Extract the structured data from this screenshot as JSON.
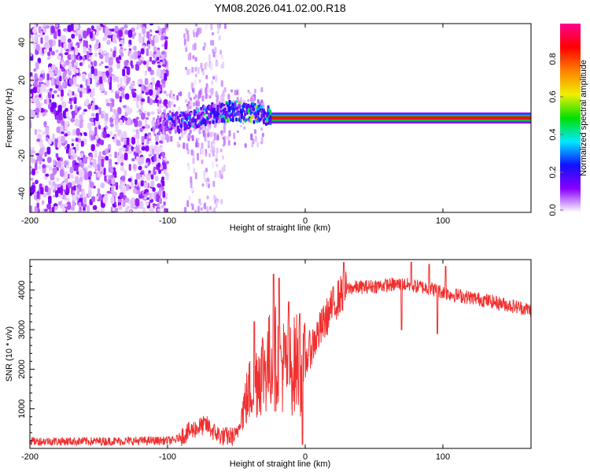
{
  "title": "YM08.2026.041.02.00.R18",
  "chart_data": [
    {
      "type": "heatmap",
      "xlabel": "Height of straight line (km)",
      "ylabel": "Frequency (Hz)",
      "xlim": [
        -200,
        164
      ],
      "ylim": [
        -50,
        50
      ],
      "xticks": [
        -200,
        -100,
        0,
        100
      ],
      "yticks": [
        40,
        20,
        0,
        -20,
        -40
      ],
      "colorbar": {
        "label": "Normalized spectral amplitude",
        "range": [
          0,
          1
        ],
        "ticks": [
          "0.0",
          "0.2",
          "0.4",
          "0.6",
          "0.8"
        ],
        "colormap": [
          "#ffffff",
          "#8a00ff",
          "#1010ff",
          "#00e8ff",
          "#00e000",
          "#f0f000",
          "#ff8000",
          "#ff0000",
          "#ff0090"
        ]
      },
      "noise_region": {
        "x": [
          -200,
          -100
        ],
        "amplitude": [
          0.0,
          0.15
        ]
      },
      "sparse_region": {
        "x": [
          -88,
          -58
        ],
        "amplitude": [
          0.0,
          0.1
        ]
      },
      "ridge": [
        {
          "x": -110,
          "freq": -4,
          "amp": 0.15
        },
        {
          "x": -100,
          "freq": -3,
          "amp": 0.25
        },
        {
          "x": -90,
          "freq": -2,
          "amp": 0.35
        },
        {
          "x": -80,
          "freq": 0,
          "amp": 0.4
        },
        {
          "x": -70,
          "freq": 2,
          "amp": 0.4
        },
        {
          "x": -60,
          "freq": 3,
          "amp": 0.45
        },
        {
          "x": -50,
          "freq": 4,
          "amp": 0.5
        },
        {
          "x": -40,
          "freq": 3,
          "amp": 0.55
        },
        {
          "x": -30,
          "freq": 1,
          "amp": 0.7
        },
        {
          "x": -20,
          "freq": 0,
          "amp": 0.8
        },
        {
          "x": 0,
          "freq": 0,
          "amp": 0.9
        },
        {
          "x": 164,
          "freq": 0,
          "amp": 0.9
        }
      ]
    },
    {
      "type": "line",
      "xlabel": "Height of straight line (km)",
      "ylabel": "SNR (10 * v/v)",
      "xlim": [
        -200,
        164
      ],
      "ylim": [
        0,
        4770
      ],
      "xticks": [
        -200,
        -100,
        0,
        100
      ],
      "yticks": [
        1000,
        2000,
        3000,
        4000
      ],
      "color": "#f03030",
      "x_start": -200,
      "x_step": 1,
      "envelope": [
        [
          -200,
          180
        ],
        [
          -150,
          180
        ],
        [
          -95,
          200
        ],
        [
          -88,
          350
        ],
        [
          -80,
          500
        ],
        [
          -72,
          600
        ],
        [
          -66,
          400
        ],
        [
          -60,
          300
        ],
        [
          -50,
          300
        ],
        [
          -46,
          900
        ],
        [
          -40,
          1500
        ],
        [
          -34,
          1900
        ],
        [
          -28,
          2100
        ],
        [
          -22,
          2300
        ],
        [
          -16,
          2100
        ],
        [
          -10,
          2000
        ],
        [
          -6,
          2200
        ],
        [
          -2,
          1800
        ],
        [
          2,
          2400
        ],
        [
          8,
          2800
        ],
        [
          14,
          3200
        ],
        [
          20,
          3600
        ],
        [
          26,
          3900
        ],
        [
          32,
          4050
        ],
        [
          50,
          4100
        ],
        [
          70,
          4150
        ],
        [
          90,
          4050
        ],
        [
          105,
          3900
        ],
        [
          130,
          3750
        ],
        [
          164,
          3500
        ]
      ],
      "spikes": [
        [
          -37,
          3200
        ],
        [
          -23,
          4400
        ],
        [
          -19,
          4300
        ],
        [
          -12,
          3700
        ],
        [
          -4,
          3400
        ],
        [
          -2,
          100
        ],
        [
          28,
          4700
        ],
        [
          70,
          4700
        ],
        [
          77,
          4700
        ],
        [
          90,
          4650
        ],
        [
          96,
          2900
        ],
        [
          102,
          4600
        ],
        [
          70,
          3000
        ]
      ]
    }
  ]
}
